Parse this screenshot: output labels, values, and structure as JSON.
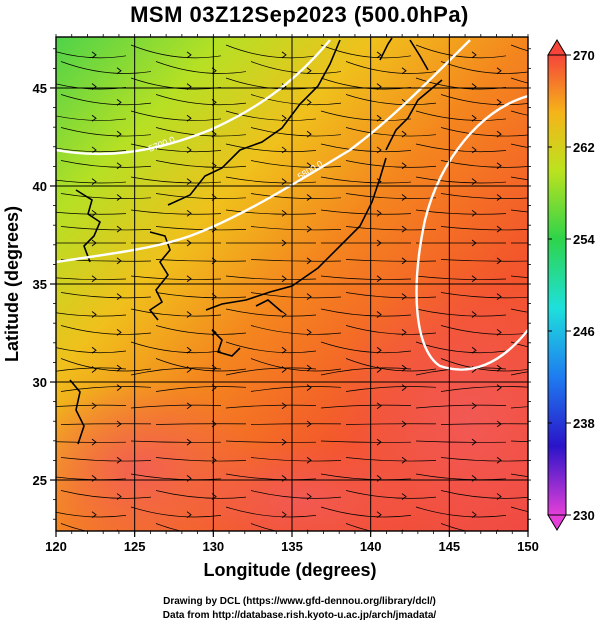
{
  "title": "MSM 03Z12Sep2023 (500.0hPa)",
  "x_axis": {
    "label": "Longitude (degrees)",
    "ticks": [
      {
        "value": 120,
        "label": "120"
      },
      {
        "value": 125,
        "label": "125"
      },
      {
        "value": 130,
        "label": "130"
      },
      {
        "value": 135,
        "label": "135"
      },
      {
        "value": 140,
        "label": "140"
      },
      {
        "value": 145,
        "label": "145"
      },
      {
        "value": 150,
        "label": "150"
      }
    ],
    "range": [
      120,
      150
    ]
  },
  "y_axis": {
    "label": "Latitude  (degrees)",
    "ticks": [
      {
        "value": 25,
        "label": "25"
      },
      {
        "value": 30,
        "label": "30"
      },
      {
        "value": 35,
        "label": "35"
      },
      {
        "value": 40,
        "label": "40"
      },
      {
        "value": 45,
        "label": "45"
      }
    ],
    "range": [
      22.4,
      47.6
    ]
  },
  "colorbar": {
    "min": 230,
    "max": 270,
    "ticks": [
      {
        "value": 270,
        "label": "270"
      },
      {
        "value": 262,
        "label": "262"
      },
      {
        "value": 254,
        "label": "254"
      },
      {
        "value": 246,
        "label": "246"
      },
      {
        "value": 238,
        "label": "238"
      },
      {
        "value": 230,
        "label": "230"
      }
    ],
    "stops": [
      {
        "value": 230,
        "color": "#e43fd8"
      },
      {
        "value": 236,
        "color": "#2a14c8"
      },
      {
        "value": 242,
        "color": "#1e7cf0"
      },
      {
        "value": 248,
        "color": "#1ee0dc"
      },
      {
        "value": 254,
        "color": "#2ed44a"
      },
      {
        "value": 260,
        "color": "#bde21e"
      },
      {
        "value": 265,
        "color": "#f5b419"
      },
      {
        "value": 270,
        "color": "#f5453a"
      }
    ]
  },
  "contours": [
    {
      "label": "5700.0"
    },
    {
      "label": "5800.0"
    }
  ],
  "credits": {
    "line1": "Drawing by DCL (https://www.gfd-dennou.org/library/dcl/)",
    "line2": "Data from http://database.rish.kyoto-u.ac.jp/arch/jmadata/"
  }
}
